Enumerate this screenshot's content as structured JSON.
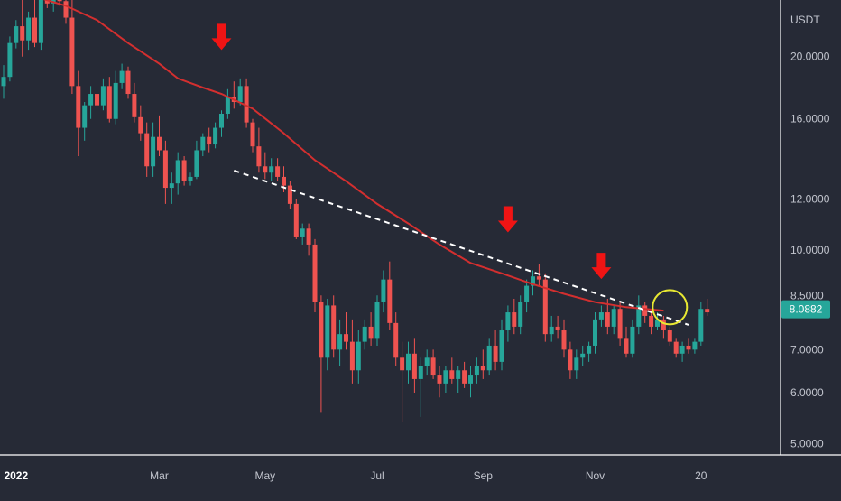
{
  "chart_data": {
    "type": "candlestick",
    "title": "",
    "quote_currency": "USDT",
    "last_price": "8.0882",
    "y_scale": "log",
    "ylim": [
      4.8,
      24.5
    ],
    "y_ticks": [
      {
        "value": 20,
        "label": "20.0000"
      },
      {
        "value": 16,
        "label": "16.0000"
      },
      {
        "value": 12,
        "label": "12.0000"
      },
      {
        "value": 10,
        "label": "10.0000"
      },
      {
        "value": 8.5,
        "label": "8.5000"
      },
      {
        "value": 7,
        "label": "7.0000"
      },
      {
        "value": 6,
        "label": "6.0000"
      },
      {
        "value": 5,
        "label": "5.0000"
      }
    ],
    "x_ticks": [
      {
        "index": 2,
        "label": "2022",
        "bold": true
      },
      {
        "index": 25,
        "label": "Mar",
        "bold": false
      },
      {
        "index": 42,
        "label": "May",
        "bold": false
      },
      {
        "index": 60,
        "label": "Jul",
        "bold": false
      },
      {
        "index": 77,
        "label": "Sep",
        "bold": false
      },
      {
        "index": 95,
        "label": "Nov",
        "bold": false
      },
      {
        "index": 112,
        "label": "20",
        "bold": false
      }
    ],
    "bar_count": 121,
    "up_color": "#26a69a",
    "down_color": "#ef5350",
    "candles": [
      {
        "o": 18.0,
        "h": 19.4,
        "l": 17.2,
        "c": 18.6
      },
      {
        "o": 18.6,
        "h": 21.5,
        "l": 18.3,
        "c": 21.0
      },
      {
        "o": 21.0,
        "h": 22.8,
        "l": 20.6,
        "c": 22.3
      },
      {
        "o": 22.3,
        "h": 24.8,
        "l": 20.0,
        "c": 21.2
      },
      {
        "o": 21.2,
        "h": 23.5,
        "l": 20.5,
        "c": 23.0
      },
      {
        "o": 23.0,
        "h": 25.2,
        "l": 20.7,
        "c": 21.0
      },
      {
        "o": 21.0,
        "h": 26.0,
        "l": 20.5,
        "c": 25.0
      },
      {
        "o": 25.0,
        "h": 26.5,
        "l": 23.8,
        "c": 24.2
      },
      {
        "o": 24.2,
        "h": 26.0,
        "l": 23.5,
        "c": 25.5
      },
      {
        "o": 25.5,
        "h": 26.5,
        "l": 24.0,
        "c": 24.4
      },
      {
        "o": 24.4,
        "h": 25.0,
        "l": 22.5,
        "c": 23.0
      },
      {
        "o": 23.0,
        "h": 24.5,
        "l": 17.5,
        "c": 18.0
      },
      {
        "o": 18.0,
        "h": 19.0,
        "l": 14.0,
        "c": 15.5
      },
      {
        "o": 15.5,
        "h": 17.0,
        "l": 14.8,
        "c": 16.8
      },
      {
        "o": 16.8,
        "h": 18.0,
        "l": 16.0,
        "c": 17.5
      },
      {
        "o": 17.5,
        "h": 18.2,
        "l": 16.3,
        "c": 16.8
      },
      {
        "o": 16.8,
        "h": 18.5,
        "l": 16.5,
        "c": 18.0
      },
      {
        "o": 18.0,
        "h": 18.6,
        "l": 15.8,
        "c": 16.0
      },
      {
        "o": 16.0,
        "h": 19.0,
        "l": 15.7,
        "c": 18.2
      },
      {
        "o": 18.2,
        "h": 19.5,
        "l": 17.8,
        "c": 19.0
      },
      {
        "o": 19.0,
        "h": 19.3,
        "l": 17.2,
        "c": 17.5
      },
      {
        "o": 17.5,
        "h": 18.2,
        "l": 15.8,
        "c": 16.1
      },
      {
        "o": 16.1,
        "h": 16.8,
        "l": 14.8,
        "c": 15.2
      },
      {
        "o": 15.2,
        "h": 15.8,
        "l": 13.0,
        "c": 13.5
      },
      {
        "o": 13.5,
        "h": 15.8,
        "l": 13.0,
        "c": 15.0
      },
      {
        "o": 15.0,
        "h": 16.2,
        "l": 14.0,
        "c": 14.3
      },
      {
        "o": 14.3,
        "h": 14.8,
        "l": 11.8,
        "c": 12.5
      },
      {
        "o": 12.5,
        "h": 13.2,
        "l": 11.8,
        "c": 12.7
      },
      {
        "o": 12.7,
        "h": 14.2,
        "l": 12.2,
        "c": 13.8
      },
      {
        "o": 13.8,
        "h": 14.0,
        "l": 12.6,
        "c": 12.8
      },
      {
        "o": 12.8,
        "h": 13.2,
        "l": 12.6,
        "c": 13.0
      },
      {
        "o": 13.0,
        "h": 14.8,
        "l": 12.9,
        "c": 14.3
      },
      {
        "o": 14.3,
        "h": 15.2,
        "l": 14.0,
        "c": 15.0
      },
      {
        "o": 15.0,
        "h": 15.5,
        "l": 14.2,
        "c": 14.6
      },
      {
        "o": 14.6,
        "h": 15.8,
        "l": 14.4,
        "c": 15.5
      },
      {
        "o": 15.5,
        "h": 16.5,
        "l": 15.0,
        "c": 16.3
      },
      {
        "o": 16.3,
        "h": 17.8,
        "l": 16.0,
        "c": 17.3
      },
      {
        "o": 17.3,
        "h": 18.3,
        "l": 16.6,
        "c": 17.0
      },
      {
        "o": 17.0,
        "h": 18.5,
        "l": 16.8,
        "c": 18.0
      },
      {
        "o": 18.0,
        "h": 18.5,
        "l": 15.5,
        "c": 15.8
      },
      {
        "o": 15.8,
        "h": 16.0,
        "l": 14.2,
        "c": 14.5
      },
      {
        "o": 14.5,
        "h": 15.5,
        "l": 13.2,
        "c": 13.5
      },
      {
        "o": 13.5,
        "h": 14.2,
        "l": 12.9,
        "c": 13.2
      },
      {
        "o": 13.2,
        "h": 13.9,
        "l": 12.8,
        "c": 13.5
      },
      {
        "o": 13.5,
        "h": 13.9,
        "l": 12.8,
        "c": 13.0
      },
      {
        "o": 13.0,
        "h": 13.5,
        "l": 12.3,
        "c": 12.6
      },
      {
        "o": 12.6,
        "h": 12.8,
        "l": 11.6,
        "c": 11.8
      },
      {
        "o": 11.8,
        "h": 12.0,
        "l": 10.4,
        "c": 10.5
      },
      {
        "o": 10.5,
        "h": 11.0,
        "l": 10.2,
        "c": 10.8
      },
      {
        "o": 10.8,
        "h": 11.0,
        "l": 9.8,
        "c": 10.2
      },
      {
        "o": 10.2,
        "h": 10.4,
        "l": 8.0,
        "c": 8.3
      },
      {
        "o": 8.3,
        "h": 8.5,
        "l": 5.6,
        "c": 6.8
      },
      {
        "o": 6.8,
        "h": 8.4,
        "l": 6.5,
        "c": 8.2
      },
      {
        "o": 8.2,
        "h": 8.5,
        "l": 6.8,
        "c": 7.0
      },
      {
        "o": 7.0,
        "h": 7.8,
        "l": 6.6,
        "c": 7.4
      },
      {
        "o": 7.4,
        "h": 8.0,
        "l": 7.0,
        "c": 7.2
      },
      {
        "o": 7.2,
        "h": 7.8,
        "l": 6.2,
        "c": 6.5
      },
      {
        "o": 6.5,
        "h": 7.5,
        "l": 6.2,
        "c": 7.2
      },
      {
        "o": 7.2,
        "h": 7.8,
        "l": 7.0,
        "c": 7.6
      },
      {
        "o": 7.6,
        "h": 8.0,
        "l": 7.1,
        "c": 7.3
      },
      {
        "o": 7.3,
        "h": 8.5,
        "l": 7.1,
        "c": 8.3
      },
      {
        "o": 8.3,
        "h": 9.3,
        "l": 8.0,
        "c": 9.0
      },
      {
        "o": 9.0,
        "h": 9.6,
        "l": 7.5,
        "c": 7.7
      },
      {
        "o": 7.7,
        "h": 8.0,
        "l": 6.6,
        "c": 6.8
      },
      {
        "o": 6.8,
        "h": 7.2,
        "l": 5.4,
        "c": 6.5
      },
      {
        "o": 6.5,
        "h": 7.2,
        "l": 6.2,
        "c": 6.9
      },
      {
        "o": 6.9,
        "h": 7.3,
        "l": 6.0,
        "c": 6.3
      },
      {
        "o": 6.3,
        "h": 6.8,
        "l": 5.5,
        "c": 6.6
      },
      {
        "o": 6.6,
        "h": 7.0,
        "l": 6.4,
        "c": 6.8
      },
      {
        "o": 6.8,
        "h": 7.0,
        "l": 6.3,
        "c": 6.4
      },
      {
        "o": 6.4,
        "h": 6.6,
        "l": 5.9,
        "c": 6.2
      },
      {
        "o": 6.2,
        "h": 6.6,
        "l": 6.0,
        "c": 6.5
      },
      {
        "o": 6.5,
        "h": 6.8,
        "l": 6.2,
        "c": 6.3
      },
      {
        "o": 6.3,
        "h": 6.6,
        "l": 6.0,
        "c": 6.5
      },
      {
        "o": 6.5,
        "h": 6.7,
        "l": 6.1,
        "c": 6.2
      },
      {
        "o": 6.2,
        "h": 6.6,
        "l": 5.9,
        "c": 6.4
      },
      {
        "o": 6.4,
        "h": 6.8,
        "l": 6.2,
        "c": 6.6
      },
      {
        "o": 6.6,
        "h": 7.0,
        "l": 6.3,
        "c": 6.5
      },
      {
        "o": 6.5,
        "h": 7.3,
        "l": 6.4,
        "c": 7.1
      },
      {
        "o": 7.1,
        "h": 7.5,
        "l": 6.5,
        "c": 6.7
      },
      {
        "o": 6.7,
        "h": 7.8,
        "l": 6.5,
        "c": 7.5
      },
      {
        "o": 7.5,
        "h": 8.2,
        "l": 7.2,
        "c": 8.0
      },
      {
        "o": 8.0,
        "h": 8.4,
        "l": 7.4,
        "c": 7.6
      },
      {
        "o": 7.6,
        "h": 8.5,
        "l": 7.4,
        "c": 8.3
      },
      {
        "o": 8.3,
        "h": 9.0,
        "l": 8.0,
        "c": 8.8
      },
      {
        "o": 8.8,
        "h": 9.3,
        "l": 8.5,
        "c": 9.1
      },
      {
        "o": 9.1,
        "h": 9.5,
        "l": 8.8,
        "c": 9.0
      },
      {
        "o": 9.0,
        "h": 9.2,
        "l": 7.2,
        "c": 7.4
      },
      {
        "o": 7.4,
        "h": 7.9,
        "l": 7.2,
        "c": 7.6
      },
      {
        "o": 7.6,
        "h": 7.9,
        "l": 7.3,
        "c": 7.5
      },
      {
        "o": 7.5,
        "h": 7.8,
        "l": 6.8,
        "c": 7.0
      },
      {
        "o": 7.0,
        "h": 7.2,
        "l": 6.3,
        "c": 6.5
      },
      {
        "o": 6.5,
        "h": 7.0,
        "l": 6.3,
        "c": 6.8
      },
      {
        "o": 6.8,
        "h": 7.1,
        "l": 6.6,
        "c": 6.9
      },
      {
        "o": 6.9,
        "h": 7.2,
        "l": 6.7,
        "c": 7.1
      },
      {
        "o": 7.1,
        "h": 8.0,
        "l": 6.9,
        "c": 7.8
      },
      {
        "o": 7.8,
        "h": 8.2,
        "l": 7.6,
        "c": 8.0
      },
      {
        "o": 8.0,
        "h": 8.4,
        "l": 7.4,
        "c": 7.6
      },
      {
        "o": 7.6,
        "h": 8.2,
        "l": 7.4,
        "c": 8.1
      },
      {
        "o": 8.1,
        "h": 8.3,
        "l": 7.1,
        "c": 7.3
      },
      {
        "o": 7.3,
        "h": 7.6,
        "l": 6.8,
        "c": 6.9
      },
      {
        "o": 6.9,
        "h": 7.8,
        "l": 6.8,
        "c": 7.6
      },
      {
        "o": 7.6,
        "h": 8.5,
        "l": 7.4,
        "c": 8.2
      },
      {
        "o": 8.2,
        "h": 8.3,
        "l": 7.7,
        "c": 7.9
      },
      {
        "o": 7.9,
        "h": 8.0,
        "l": 7.4,
        "c": 7.6
      },
      {
        "o": 7.6,
        "h": 8.0,
        "l": 7.5,
        "c": 7.8
      },
      {
        "o": 7.8,
        "h": 7.9,
        "l": 7.3,
        "c": 7.5
      },
      {
        "o": 7.5,
        "h": 7.6,
        "l": 7.1,
        "c": 7.2
      },
      {
        "o": 7.2,
        "h": 7.3,
        "l": 6.8,
        "c": 6.9
      },
      {
        "o": 6.9,
        "h": 7.2,
        "l": 6.7,
        "c": 7.1
      },
      {
        "o": 7.1,
        "h": 7.3,
        "l": 6.9,
        "c": 7.0
      },
      {
        "o": 7.0,
        "h": 7.3,
        "l": 6.9,
        "c": 7.2
      },
      {
        "o": 7.2,
        "h": 8.3,
        "l": 7.1,
        "c": 8.1
      },
      {
        "o": 8.1,
        "h": 8.4,
        "l": 7.9,
        "c": 8.0
      }
    ],
    "moving_average": {
      "name": "moving average",
      "color": "#d32f2f",
      "values": [
        [
          0,
          25.0
        ],
        [
          5,
          24.8
        ],
        [
          10,
          24.0
        ],
        [
          15,
          22.8
        ],
        [
          20,
          21.0
        ],
        [
          25,
          19.5
        ],
        [
          28,
          18.5
        ],
        [
          32,
          17.9
        ],
        [
          35,
          17.5
        ],
        [
          40,
          16.6
        ],
        [
          45,
          15.2
        ],
        [
          50,
          13.8
        ],
        [
          55,
          12.8
        ],
        [
          60,
          11.8
        ],
        [
          65,
          11.0
        ],
        [
          70,
          10.2
        ],
        [
          75,
          9.55
        ],
        [
          80,
          9.2
        ],
        [
          85,
          8.85
        ],
        [
          90,
          8.55
        ],
        [
          95,
          8.3
        ],
        [
          100,
          8.15
        ],
        [
          106,
          8.05
        ]
      ]
    },
    "trendline": {
      "name": "descending trendline",
      "color": "#ffffff",
      "dashed": true,
      "points": [
        [
          37,
          13.3
        ],
        [
          110,
          7.65
        ]
      ]
    },
    "annotations": [
      {
        "type": "arrow-down",
        "index": 35,
        "value": 22.5,
        "color": "#f01414"
      },
      {
        "type": "arrow-down",
        "index": 81,
        "value": 11.7,
        "color": "#f01414"
      },
      {
        "type": "arrow-down",
        "index": 96,
        "value": 9.9,
        "color": "#f01414"
      },
      {
        "type": "circle",
        "index": 107,
        "value": 8.15,
        "color": "#e8e832"
      }
    ]
  },
  "colors": {
    "background": "#262a36",
    "text": "#c3c6cf",
    "axis_line": "#ffffff",
    "price_badge": "#26a69a"
  }
}
